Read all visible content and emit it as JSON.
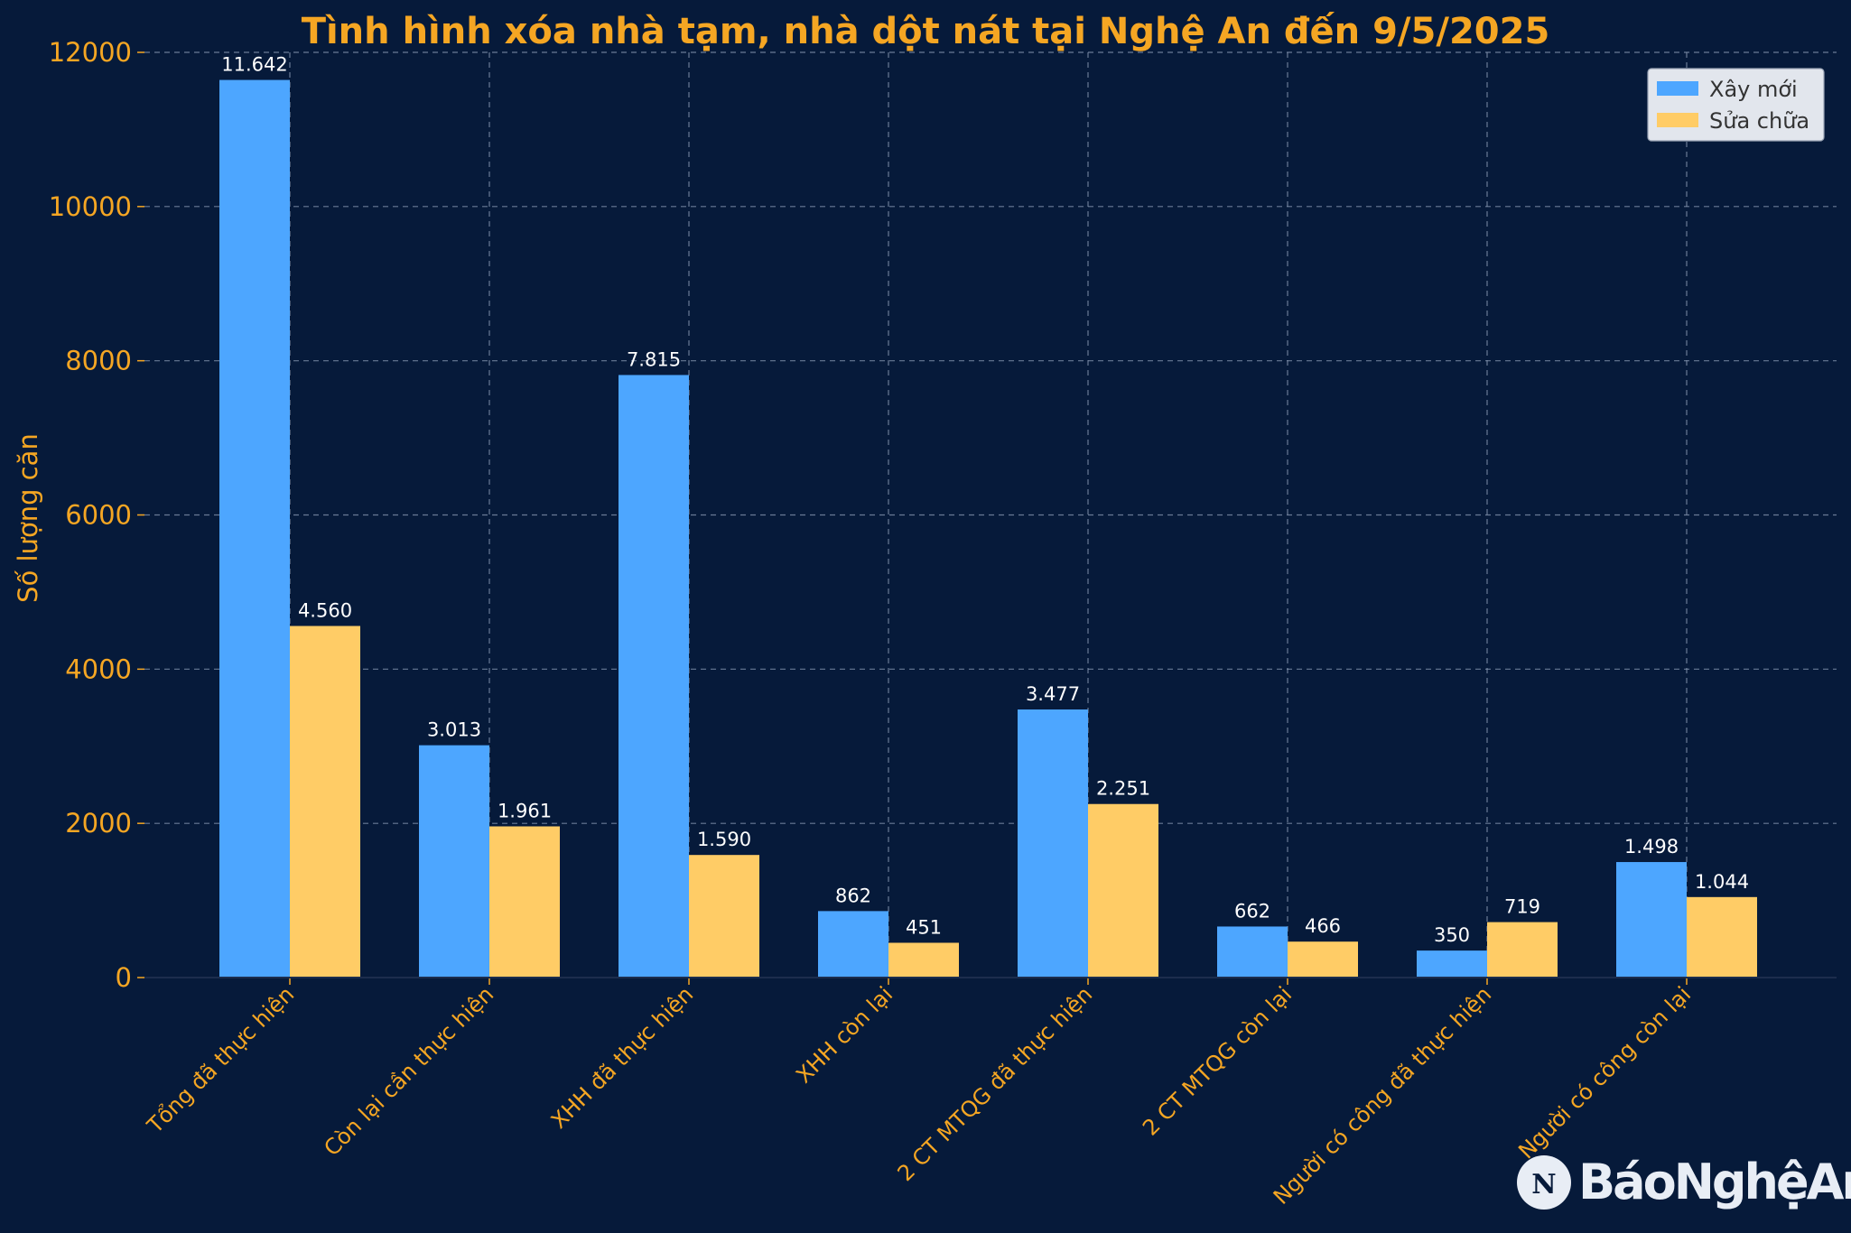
{
  "chart_data": {
    "type": "bar",
    "title": "Tình hình xóa nhà tạm, nhà dột nát tại Nghệ An đến 9/5/2025",
    "ylabel": "Số lượng căn",
    "xlabel": "",
    "ylim": [
      0,
      12000
    ],
    "yticks": [
      0,
      2000,
      4000,
      6000,
      8000,
      10000,
      12000
    ],
    "grid": true,
    "legend_position": "top-right",
    "categories": [
      "Tổng đã thực hiện",
      "Còn lại cần thực hiện",
      "XHH đã thực hiện",
      "XHH còn lại",
      "2 CT MTQG đã thực hiện",
      "2 CT MTQG còn lại",
      "Người có công đã thực hiện",
      "Người có công còn lại"
    ],
    "series": [
      {
        "name": "Xây mới",
        "color": "#4da6ff",
        "values": [
          11642,
          3013,
          7815,
          862,
          3477,
          662,
          350,
          1498
        ],
        "labels": [
          "11.642",
          "3.013",
          "7.815",
          "862",
          "3.477",
          "662",
          "350",
          "1.498"
        ]
      },
      {
        "name": "Sửa chữa",
        "color": "#ffcc66",
        "values": [
          4560,
          1961,
          1590,
          451,
          2251,
          466,
          719,
          1044
        ],
        "labels": [
          "4.560",
          "1.961",
          "1.590",
          "451",
          "2.251",
          "466",
          "719",
          "1.044"
        ]
      }
    ]
  },
  "colors": {
    "background": "#061a3a",
    "accent": "#f5a623",
    "grid": "#8a9ab5"
  },
  "watermark": {
    "text": "BáoNghệAn",
    "icon": "bao-nghe-an-logo-icon"
  }
}
